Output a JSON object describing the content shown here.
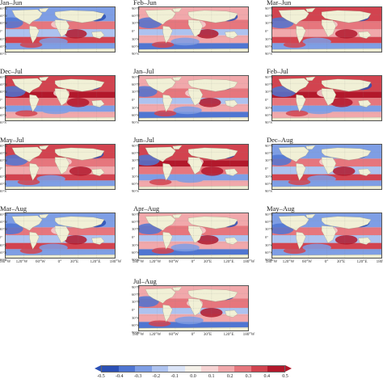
{
  "panels": [
    {
      "title": "Jan–Jun",
      "scheme": 0
    },
    {
      "title": "Feb–Jun",
      "scheme": 1
    },
    {
      "title": "Mar–Jun",
      "scheme": 2
    },
    {
      "title": "Dec–Jul",
      "scheme": 3
    },
    {
      "title": "Jan–Jul",
      "scheme": 1
    },
    {
      "title": "Feb–Jul",
      "scheme": 3
    },
    {
      "title": "May–Jul",
      "scheme": 2
    },
    {
      "title": "Jun–Jul",
      "scheme": 3
    },
    {
      "title": "Dec–Aug",
      "scheme": 0
    },
    {
      "title": "Mar–Aug",
      "scheme": 0
    },
    {
      "title": "Apr–Aug",
      "scheme": 1
    },
    {
      "title": "May–Aug",
      "scheme": 0
    },
    {
      "title": "Jul–Aug",
      "scheme": 1
    }
  ],
  "lat_labels": [
    "90°N",
    "60°N",
    "30°N",
    "0°",
    "30°S",
    "60°S",
    "90°S"
  ],
  "lon_labels": [
    "180°W",
    "120°W",
    "60°W",
    "0°",
    "30°E",
    "120°E",
    "180°W"
  ],
  "colorbar": {
    "ticks": [
      "-0.5",
      "-0.4",
      "-0.3",
      "-0.2",
      "-0.1",
      "0.0",
      "0.1",
      "0.2",
      "0.3",
      "0.4",
      "0.5"
    ],
    "colors": [
      "#2b50b5",
      "#4f75d2",
      "#7e9ee5",
      "#adc2ef",
      "#dbe4f7",
      "#f4f0e8",
      "#f6d3d3",
      "#f1a8ab",
      "#e6767d",
      "#d2434f",
      "#b2182b"
    ]
  },
  "land_color": "#f1f0d6"
}
